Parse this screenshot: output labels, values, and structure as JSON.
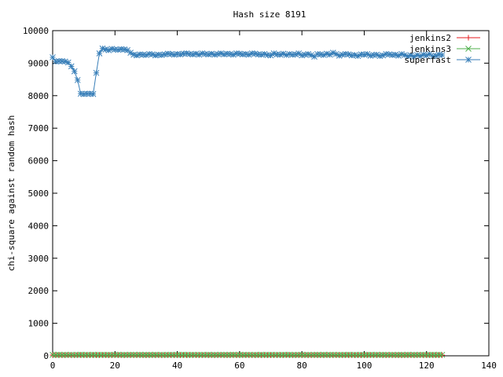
{
  "chart_data": {
    "type": "line",
    "title": "Hash size 8191",
    "xlabel": "",
    "ylabel": "chi-square against random hash",
    "xlim": [
      0,
      140
    ],
    "ylim": [
      0,
      10000
    ],
    "x_ticks": [
      0,
      20,
      40,
      60,
      80,
      100,
      120,
      140
    ],
    "y_ticks": [
      0,
      1000,
      2000,
      3000,
      4000,
      5000,
      6000,
      7000,
      8000,
      9000,
      10000
    ],
    "grid": false,
    "legend_position": "top-right",
    "x": [
      0,
      1,
      2,
      3,
      4,
      5,
      6,
      7,
      8,
      9,
      10,
      11,
      12,
      13,
      14,
      15,
      16,
      17,
      18,
      19,
      20,
      21,
      22,
      23,
      24,
      25,
      26,
      27,
      28,
      29,
      30,
      31,
      32,
      33,
      34,
      35,
      36,
      37,
      38,
      39,
      40,
      41,
      42,
      43,
      44,
      45,
      46,
      47,
      48,
      49,
      50,
      51,
      52,
      53,
      54,
      55,
      56,
      57,
      58,
      59,
      60,
      61,
      62,
      63,
      64,
      65,
      66,
      67,
      68,
      69,
      70,
      71,
      72,
      73,
      74,
      75,
      76,
      77,
      78,
      79,
      80,
      81,
      82,
      83,
      84,
      85,
      86,
      87,
      88,
      89,
      90,
      91,
      92,
      93,
      94,
      95,
      96,
      97,
      98,
      99,
      100,
      101,
      102,
      103,
      104,
      105,
      106,
      107,
      108,
      109,
      110,
      111,
      112,
      113,
      114,
      115,
      116,
      117,
      118,
      119,
      120,
      121,
      122,
      123,
      124,
      125
    ],
    "series": [
      {
        "name": "jenkins2",
        "color": "#e41a1c",
        "marker": "plus",
        "values": [
          22,
          21,
          23,
          20,
          22,
          24,
          21,
          19,
          22,
          23,
          21,
          22,
          20,
          23,
          22,
          21,
          24,
          22,
          20,
          21,
          23,
          22,
          21,
          20,
          22,
          23,
          21,
          22,
          24,
          21,
          20,
          22,
          23,
          21,
          22,
          20,
          21,
          23,
          22,
          21,
          22,
          20,
          23,
          21,
          22,
          24,
          21,
          20,
          22,
          23,
          21,
          22,
          20,
          21,
          23,
          22,
          21,
          22,
          24,
          20,
          21,
          22,
          23,
          21,
          22,
          20,
          23,
          21,
          22,
          21,
          20,
          22,
          23,
          21,
          22,
          24,
          21,
          20,
          22,
          23,
          21,
          22,
          20,
          21,
          23,
          22,
          21,
          22,
          24,
          20,
          21,
          22,
          23,
          21,
          22,
          20,
          23,
          21,
          22,
          21,
          20,
          22,
          23,
          21,
          22,
          24,
          21,
          20,
          22,
          23,
          21,
          22,
          20,
          21,
          23,
          22,
          21,
          22,
          24,
          20,
          21,
          22,
          23,
          21,
          22,
          20
        ]
      },
      {
        "name": "jenkins3",
        "color": "#4daf4a",
        "marker": "cross",
        "values": [
          30,
          28,
          33,
          27,
          31,
          29,
          32,
          26,
          30,
          34,
          28,
          31,
          29,
          33,
          27,
          30,
          32,
          28,
          31,
          29,
          30,
          33,
          27,
          31,
          28,
          32,
          30,
          29,
          34,
          28,
          31,
          30,
          27,
          33,
          29,
          31,
          28,
          30,
          32,
          29,
          31,
          27,
          33,
          30,
          28,
          32,
          29,
          31,
          30,
          28,
          33,
          27,
          31,
          29,
          32,
          30,
          28,
          31,
          34,
          29,
          30,
          28,
          32,
          31,
          29,
          30,
          27,
          33,
          28,
          31,
          30,
          29,
          32,
          28,
          31,
          30,
          33,
          27,
          29,
          31,
          30,
          28,
          32,
          29,
          31,
          30,
          27,
          33,
          28,
          31,
          32,
          29,
          30,
          28,
          31,
          33,
          29,
          30,
          27,
          32,
          28,
          31,
          30,
          29,
          33,
          28,
          31,
          30,
          29,
          32,
          28,
          31,
          30,
          27,
          33,
          29,
          31,
          28,
          30,
          32,
          29,
          31,
          30,
          28,
          33,
          29
        ]
      },
      {
        "name": "superfast",
        "color": "#377eb8",
        "marker": "star",
        "values": [
          9180,
          9050,
          9060,
          9060,
          9050,
          9020,
          8900,
          8750,
          8480,
          8060,
          8050,
          8060,
          8060,
          8050,
          8700,
          9300,
          9450,
          9420,
          9400,
          9440,
          9420,
          9410,
          9430,
          9420,
          9400,
          9320,
          9260,
          9240,
          9270,
          9260,
          9250,
          9280,
          9270,
          9240,
          9260,
          9250,
          9270,
          9290,
          9280,
          9260,
          9280,
          9270,
          9290,
          9300,
          9280,
          9270,
          9290,
          9260,
          9300,
          9280,
          9270,
          9290,
          9260,
          9280,
          9300,
          9270,
          9290,
          9280,
          9260,
          9300,
          9290,
          9270,
          9280,
          9260,
          9300,
          9290,
          9270,
          9260,
          9280,
          9250,
          9240,
          9300,
          9270,
          9260,
          9290,
          9250,
          9280,
          9260,
          9270,
          9300,
          9240,
          9260,
          9280,
          9250,
          9200,
          9280,
          9270,
          9250,
          9290,
          9260,
          9320,
          9280,
          9230,
          9260,
          9280,
          9270,
          9240,
          9250,
          9220,
          9270,
          9260,
          9280,
          9230,
          9250,
          9260,
          9220,
          9240,
          9280,
          9270,
          9250,
          9260,
          9230,
          9280,
          9250,
          9210,
          9240,
          9200,
          9250,
          9220,
          9260,
          9240,
          9280,
          9210,
          9230,
          9260,
          9250
        ]
      }
    ]
  }
}
